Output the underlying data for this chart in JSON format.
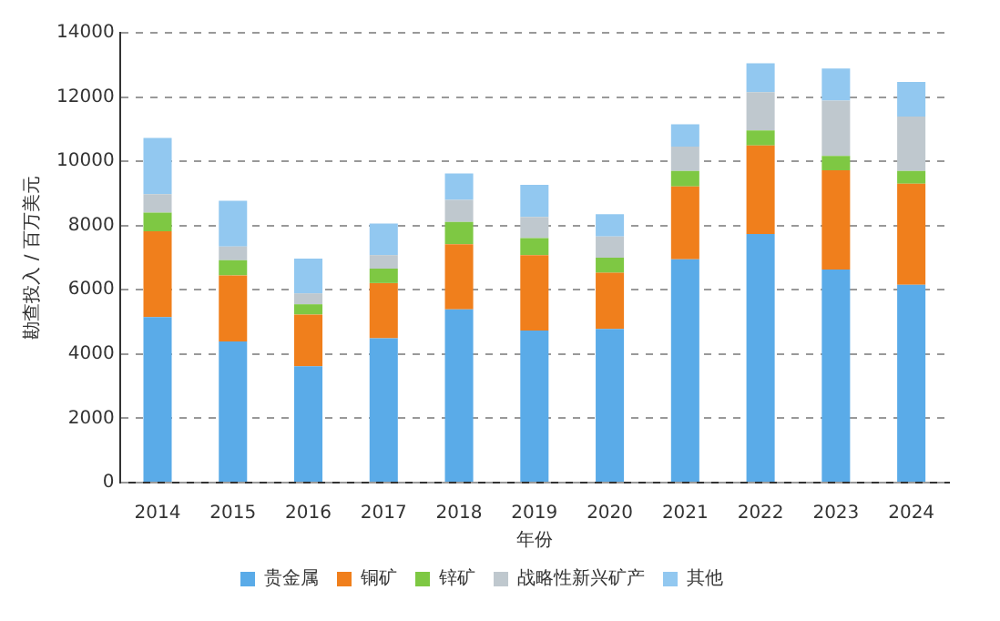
{
  "chart_data": {
    "type": "bar",
    "stacked": true,
    "xlabel": "年份",
    "ylabel": "勘查投入 / 百万美元",
    "categories": [
      "2014",
      "2015",
      "2016",
      "2017",
      "2018",
      "2019",
      "2020",
      "2021",
      "2022",
      "2023",
      "2024"
    ],
    "series": [
      {
        "name": "贵金属",
        "color": "#5aabe8",
        "values": [
          5150,
          4390,
          3620,
          4490,
          5390,
          4730,
          4780,
          6950,
          7740,
          6630,
          6160
        ]
      },
      {
        "name": "铜矿",
        "color": "#f07f1c",
        "values": [
          2670,
          2060,
          1610,
          1720,
          2030,
          2350,
          1750,
          2270,
          2750,
          3090,
          3140
        ]
      },
      {
        "name": "锌矿",
        "color": "#7ec843",
        "values": [
          580,
          470,
          320,
          450,
          690,
          530,
          470,
          480,
          470,
          450,
          400
        ]
      },
      {
        "name": "战略性新兴矿产",
        "color": "#bfc8ce",
        "values": [
          580,
          430,
          340,
          420,
          690,
          660,
          660,
          760,
          1190,
          1720,
          1690
        ]
      },
      {
        "name": "其他",
        "color": "#92c8f0",
        "values": [
          1750,
          1420,
          1080,
          980,
          820,
          1000,
          690,
          690,
          900,
          1000,
          1080
        ]
      }
    ],
    "ylim": [
      0,
      14000
    ],
    "yticks": [
      0,
      2000,
      4000,
      6000,
      8000,
      10000,
      12000,
      14000
    ],
    "grid": "y",
    "legend": "bottom"
  }
}
